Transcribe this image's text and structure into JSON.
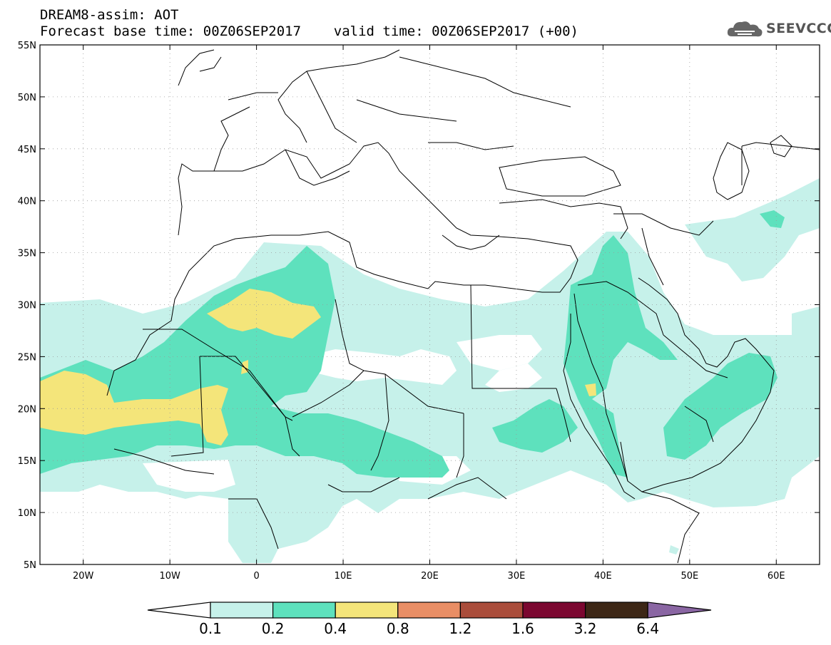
{
  "header": {
    "line1": "DREAM8-assim: AOT",
    "line2": "Forecast base time: 00Z06SEP2017    valid time: 00Z06SEP2017 (+00)"
  },
  "logo": {
    "text": "SEEVCCC",
    "icon": "cloud-logo-icon"
  },
  "map": {
    "lon_range": [
      -25,
      65
    ],
    "lat_range": [
      5,
      55
    ],
    "grid": "dotted",
    "x_tick_labels": [
      "20W",
      "10W",
      "0",
      "10E",
      "20E",
      "30E",
      "40E",
      "50E",
      "60E"
    ],
    "x_tick_values": [
      -20,
      -10,
      0,
      10,
      20,
      30,
      40,
      50,
      60
    ],
    "y_tick_labels": [
      "5N",
      "10N",
      "15N",
      "20N",
      "25N",
      "30N",
      "35N",
      "40N",
      "45N",
      "50N",
      "55N"
    ],
    "y_tick_values": [
      5,
      10,
      15,
      20,
      25,
      30,
      35,
      40,
      45,
      50,
      55
    ]
  },
  "legend": {
    "labels": [
      "0.1",
      "0.2",
      "0.4",
      "0.8",
      "1.2",
      "1.6",
      "3.2",
      "6.4"
    ],
    "colors": [
      "#c6f1ea",
      "#5ee1bd",
      "#f4e57a",
      "#e98e65",
      "#aa4d3b",
      "#7b0730",
      "#3d2716",
      "#8a66a3"
    ]
  }
}
